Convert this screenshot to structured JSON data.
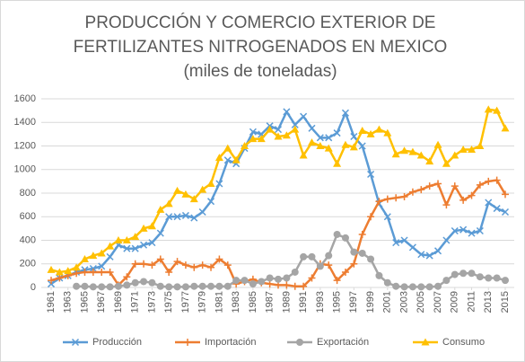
{
  "chart_data": {
    "type": "line",
    "title": [
      "PRODUCCIÓN Y COMERCIO EXTERIOR DE",
      "FERTILIZANTES NITROGENADOS EN MEXICO",
      "(miles de toneladas)"
    ],
    "x": [
      1961,
      1962,
      1963,
      1964,
      1965,
      1966,
      1967,
      1968,
      1969,
      1970,
      1971,
      1972,
      1973,
      1974,
      1975,
      1976,
      1977,
      1978,
      1979,
      1980,
      1981,
      1982,
      1983,
      1984,
      1985,
      1986,
      1987,
      1988,
      1989,
      1990,
      1991,
      1992,
      1993,
      1994,
      1995,
      1996,
      1997,
      1998,
      1999,
      2000,
      2001,
      2002,
      2003,
      2004,
      2005,
      2006,
      2007,
      2008,
      2009,
      2010,
      2011,
      2012,
      2013,
      2014,
      2015
    ],
    "xlim": [
      1961,
      2015
    ],
    "xticks": [
      1961,
      1963,
      1965,
      1967,
      1969,
      1971,
      1973,
      1975,
      1977,
      1979,
      1981,
      1983,
      1985,
      1987,
      1989,
      1991,
      1993,
      1995,
      1997,
      1999,
      2001,
      2003,
      2005,
      2007,
      2009,
      2011,
      2013,
      2015
    ],
    "ylim": [
      0,
      1600
    ],
    "yticks": [
      0,
      200,
      400,
      600,
      800,
      1000,
      1200,
      1400,
      1600
    ],
    "grid": true,
    "legend": "bottom",
    "series": [
      {
        "name": "Producción",
        "color": "#5b9bd5",
        "marker": "x",
        "values": [
          30,
          80,
          100,
          130,
          150,
          160,
          180,
          260,
          360,
          330,
          330,
          360,
          380,
          460,
          600,
          600,
          610,
          590,
          640,
          730,
          880,
          1080,
          1050,
          1180,
          1320,
          1300,
          1370,
          1340,
          1490,
          1380,
          1450,
          1350,
          1270,
          1270,
          1310,
          1480,
          1280,
          1200,
          960,
          710,
          600,
          380,
          400,
          340,
          280,
          270,
          310,
          400,
          480,
          490,
          460,
          480,
          720,
          670,
          640
        ]
      },
      {
        "name": "Importación",
        "color": "#ed7d31",
        "marker": "plus",
        "values": [
          60,
          80,
          100,
          120,
          130,
          130,
          130,
          130,
          20,
          90,
          200,
          200,
          190,
          240,
          130,
          220,
          190,
          170,
          190,
          170,
          240,
          190,
          30,
          50,
          70,
          40,
          30,
          20,
          20,
          10,
          10,
          80,
          200,
          190,
          60,
          130,
          200,
          450,
          600,
          730,
          750,
          760,
          770,
          810,
          830,
          860,
          880,
          700,
          860,
          740,
          780,
          870,
          900,
          910,
          790
        ]
      },
      {
        "name": "Exportación",
        "color": "#a5a5a5",
        "marker": "circle",
        "values": [
          null,
          null,
          null,
          10,
          10,
          5,
          5,
          5,
          10,
          20,
          40,
          50,
          40,
          10,
          5,
          5,
          5,
          10,
          10,
          10,
          10,
          10,
          60,
          60,
          30,
          50,
          80,
          70,
          80,
          130,
          260,
          260,
          180,
          270,
          450,
          420,
          300,
          290,
          240,
          100,
          40,
          10,
          5,
          5,
          5,
          5,
          10,
          60,
          110,
          120,
          120,
          90,
          80,
          80,
          60
        ]
      },
      {
        "name": "Consumo",
        "color": "#ffc000",
        "marker": "triangle",
        "values": [
          150,
          130,
          140,
          170,
          240,
          270,
          290,
          350,
          400,
          400,
          430,
          500,
          520,
          660,
          710,
          820,
          790,
          750,
          830,
          880,
          1100,
          1180,
          1080,
          1200,
          1260,
          1260,
          1340,
          1280,
          1290,
          1340,
          1120,
          1230,
          1200,
          1180,
          1050,
          1210,
          1190,
          1330,
          1300,
          1340,
          1310,
          1130,
          1160,
          1150,
          1120,
          1070,
          1210,
          1050,
          1120,
          1170,
          1170,
          1200,
          1510,
          1500,
          1350
        ]
      }
    ]
  }
}
